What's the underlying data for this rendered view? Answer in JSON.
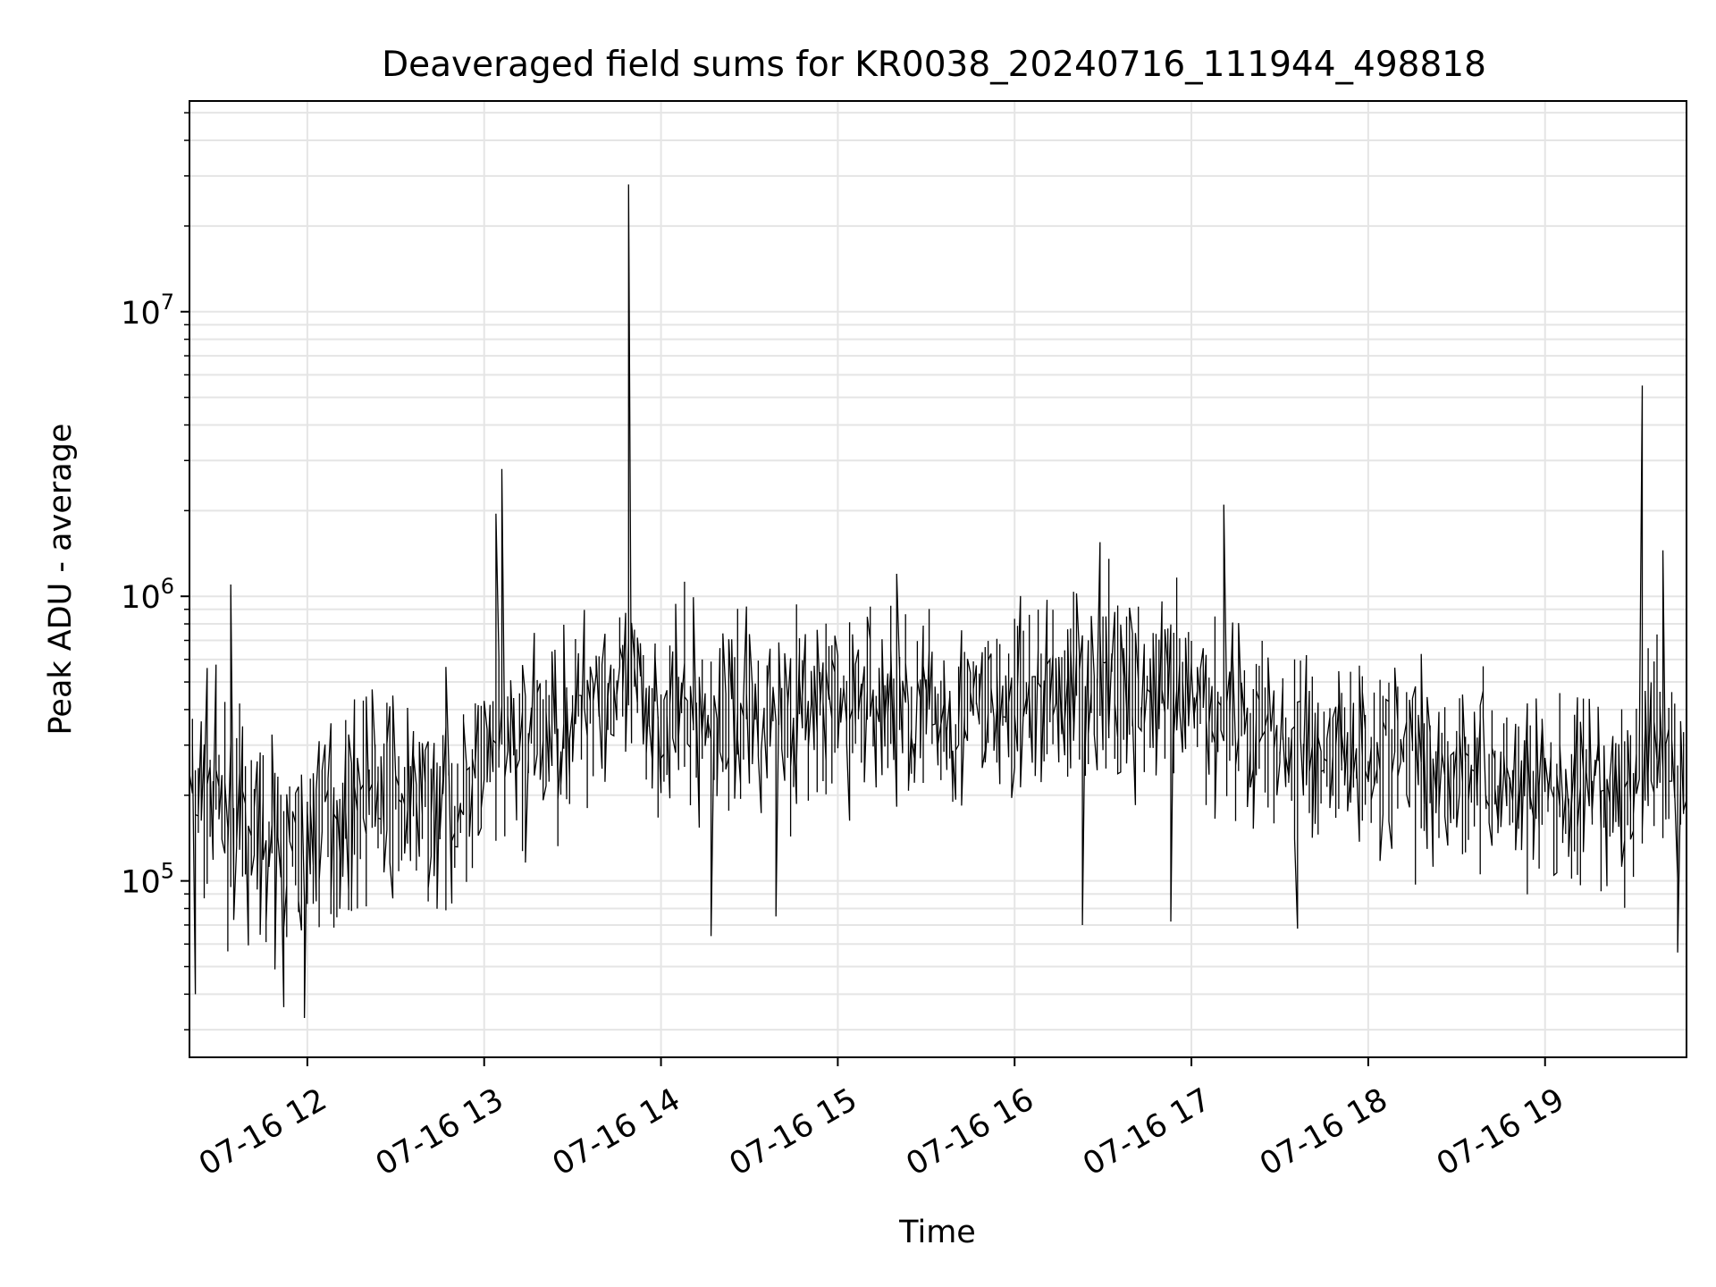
{
  "chart_data": {
    "type": "line",
    "title": "Deaveraged field sums for KR0038_20240716_111944_498818",
    "xlabel": "Time",
    "ylabel": "Peak ADU - average",
    "yscale": "log",
    "ylim": [
      24000,
      55000000
    ],
    "xlim": [
      "2024-07-16 11:20",
      "2024-07-16 19:48"
    ],
    "grid": true,
    "line_color": "#000000",
    "grid_color": "#e5e5e5",
    "x_ticks": [
      {
        "t": "2024-07-16 12:00",
        "label": "07-16 12"
      },
      {
        "t": "2024-07-16 13:00",
        "label": "07-16 13"
      },
      {
        "t": "2024-07-16 14:00",
        "label": "07-16 14"
      },
      {
        "t": "2024-07-16 15:00",
        "label": "07-16 15"
      },
      {
        "t": "2024-07-16 16:00",
        "label": "07-16 16"
      },
      {
        "t": "2024-07-16 17:00",
        "label": "07-16 17"
      },
      {
        "t": "2024-07-16 18:00",
        "label": "07-16 18"
      },
      {
        "t": "2024-07-16 19:00",
        "label": "07-16 19"
      }
    ],
    "y_ticks": [
      {
        "value": 100000,
        "base": "10",
        "exp": "5"
      },
      {
        "value": 1000000,
        "base": "10",
        "exp": "6"
      },
      {
        "value": 10000000,
        "base": "10",
        "exp": "7"
      }
    ],
    "x": [
      "2024-07-16 11:20",
      "2024-07-16 11:26",
      "2024-07-16 11:32",
      "2024-07-16 11:38",
      "2024-07-16 11:45",
      "2024-07-16 11:51",
      "2024-07-16 11:57",
      "2024-07-16 12:03",
      "2024-07-16 12:09",
      "2024-07-16 12:15",
      "2024-07-16 12:21",
      "2024-07-16 12:27",
      "2024-07-16 12:33",
      "2024-07-16 12:39",
      "2024-07-16 12:45",
      "2024-07-16 12:51",
      "2024-07-16 12:57",
      "2024-07-16 13:03",
      "2024-07-16 13:09",
      "2024-07-16 13:15",
      "2024-07-16 13:21",
      "2024-07-16 13:27",
      "2024-07-16 13:33",
      "2024-07-16 13:39",
      "2024-07-16 13:45",
      "2024-07-16 13:51",
      "2024-07-16 13:57",
      "2024-07-16 14:03",
      "2024-07-16 14:09",
      "2024-07-16 14:15",
      "2024-07-16 14:21",
      "2024-07-16 14:27",
      "2024-07-16 14:33",
      "2024-07-16 14:39",
      "2024-07-16 14:45",
      "2024-07-16 14:51",
      "2024-07-16 14:57",
      "2024-07-16 15:03",
      "2024-07-16 15:09",
      "2024-07-16 15:15",
      "2024-07-16 15:21",
      "2024-07-16 15:27",
      "2024-07-16 15:33",
      "2024-07-16 15:39",
      "2024-07-16 15:45",
      "2024-07-16 15:51",
      "2024-07-16 15:57",
      "2024-07-16 16:03",
      "2024-07-16 16:09",
      "2024-07-16 16:15",
      "2024-07-16 16:21",
      "2024-07-16 16:27",
      "2024-07-16 16:33",
      "2024-07-16 16:39",
      "2024-07-16 16:45",
      "2024-07-16 16:51",
      "2024-07-16 16:57",
      "2024-07-16 17:03",
      "2024-07-16 17:09",
      "2024-07-16 17:15",
      "2024-07-16 17:21",
      "2024-07-16 17:27",
      "2024-07-16 17:33",
      "2024-07-16 17:39",
      "2024-07-16 17:45",
      "2024-07-16 17:51",
      "2024-07-16 17:57",
      "2024-07-16 18:03",
      "2024-07-16 18:09",
      "2024-07-16 18:15",
      "2024-07-16 18:21",
      "2024-07-16 18:27",
      "2024-07-16 18:33",
      "2024-07-16 18:39",
      "2024-07-16 18:45",
      "2024-07-16 18:51",
      "2024-07-16 18:57",
      "2024-07-16 19:03",
      "2024-07-16 19:09",
      "2024-07-16 19:15",
      "2024-07-16 19:21",
      "2024-07-16 19:27",
      "2024-07-16 19:33",
      "2024-07-16 19:39",
      "2024-07-16 19:45"
    ],
    "series": [
      {
        "values": [
          220000,
          200000,
          180000,
          160000,
          140000,
          130000,
          120000,
          150000,
          160000,
          170000,
          210000,
          200000,
          180000,
          170000,
          190000,
          200000,
          220000,
          260000,
          280000,
          300000,
          320000,
          340000,
          380000,
          520000,
          480000,
          420000,
          400000,
          390000,
          380000,
          370000,
          360000,
          380000,
          390000,
          400000,
          410000,
          400000,
          390000,
          400000,
          420000,
          430000,
          420000,
          400000,
          390000,
          380000,
          390000,
          400000,
          410000,
          420000,
          440000,
          460000,
          480000,
          490000,
          500000,
          480000,
          460000,
          440000,
          430000,
          420000,
          400000,
          380000,
          350000,
          320000,
          300000,
          290000,
          280000,
          290000,
          300000,
          300000,
          290000,
          280000,
          270000,
          260000,
          250000,
          240000,
          230000,
          220000,
          210000,
          200000,
          200000,
          190000,
          180000,
          190000,
          260000,
          300000,
          240000
        ]
      }
    ],
    "spikes": [
      {
        "t": "2024-07-16 13:50",
        "value": 28000000
      },
      {
        "t": "2024-07-16 19:33",
        "value": 5500000
      },
      {
        "t": "2024-07-16 13:07",
        "value": 2800000
      },
      {
        "t": "2024-07-16 17:12",
        "value": 2100000
      },
      {
        "t": "2024-07-16 13:05",
        "value": 1950000
      },
      {
        "t": "2024-07-16 19:41",
        "value": 1450000
      },
      {
        "t": "2024-07-16 16:29",
        "value": 1550000
      },
      {
        "t": "2024-07-16 11:35",
        "value": 1100000
      },
      {
        "t": "2024-07-16 15:21",
        "value": 1200000
      },
      {
        "t": "2024-07-16 11:52",
        "value": 36000
      },
      {
        "t": "2024-07-16 12:00",
        "value": 33000
      },
      {
        "t": "2024-07-16 11:22",
        "value": 40000
      },
      {
        "t": "2024-07-16 14:18",
        "value": 64000
      },
      {
        "t": "2024-07-16 16:24",
        "value": 70000
      },
      {
        "t": "2024-07-16 16:54",
        "value": 72000
      },
      {
        "t": "2024-07-16 17:36",
        "value": 68000
      },
      {
        "t": "2024-07-16 19:46",
        "value": 56000
      },
      {
        "t": "2024-07-16 14:40",
        "value": 75000
      }
    ]
  }
}
